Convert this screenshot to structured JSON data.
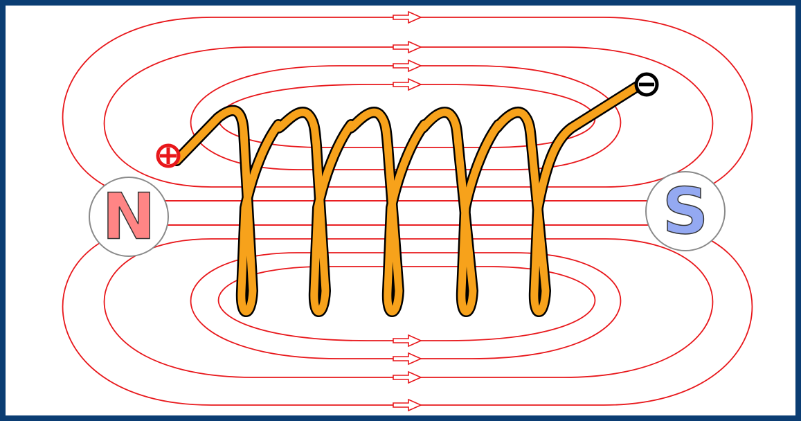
{
  "poles": {
    "north": "N",
    "south": "S"
  }
}
